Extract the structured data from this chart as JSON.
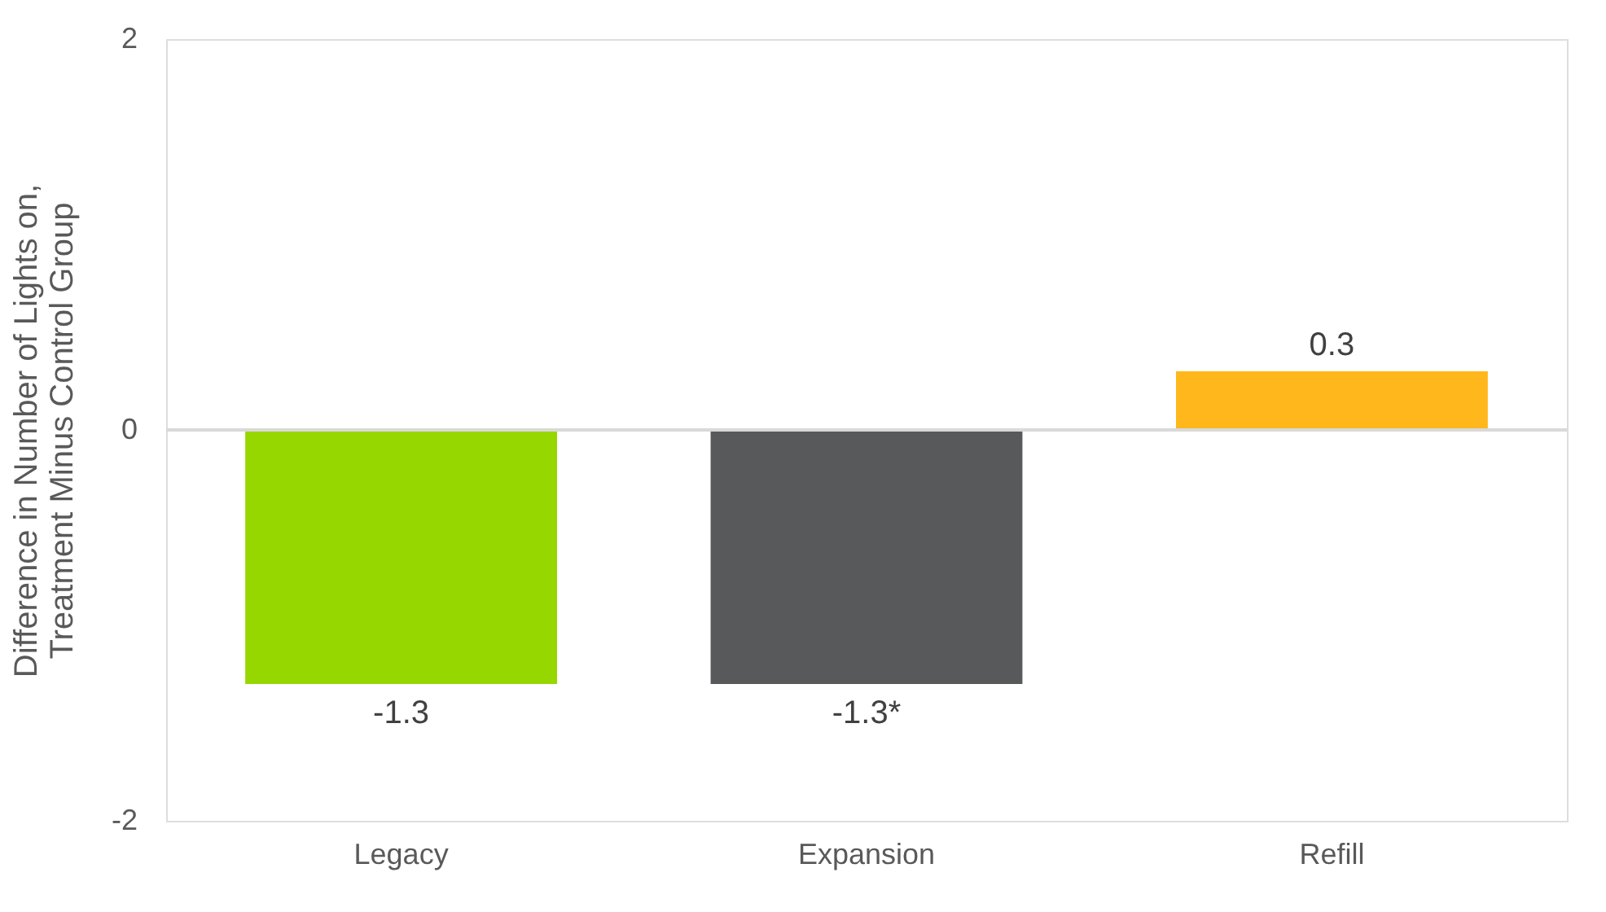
{
  "chart_data": {
    "type": "bar",
    "ylabel": "Difference in Number of Lights on, Treatment Minus Control Group",
    "categories": [
      "Legacy",
      "Expansion",
      "Refill"
    ],
    "values": [
      -1.3,
      -1.3,
      0.3
    ],
    "colors": [
      "#97d700",
      "#58595b",
      "#ffb71b"
    ],
    "value_labels": [
      "-1.3",
      "-1.3*",
      "0.3"
    ],
    "ylim": [
      -2,
      2
    ],
    "yticks": [
      -2,
      0,
      2
    ],
    "ref_lines": [
      {
        "axis": "y",
        "value": 0,
        "color": "#d9d9d9"
      }
    ],
    "grid": false
  }
}
